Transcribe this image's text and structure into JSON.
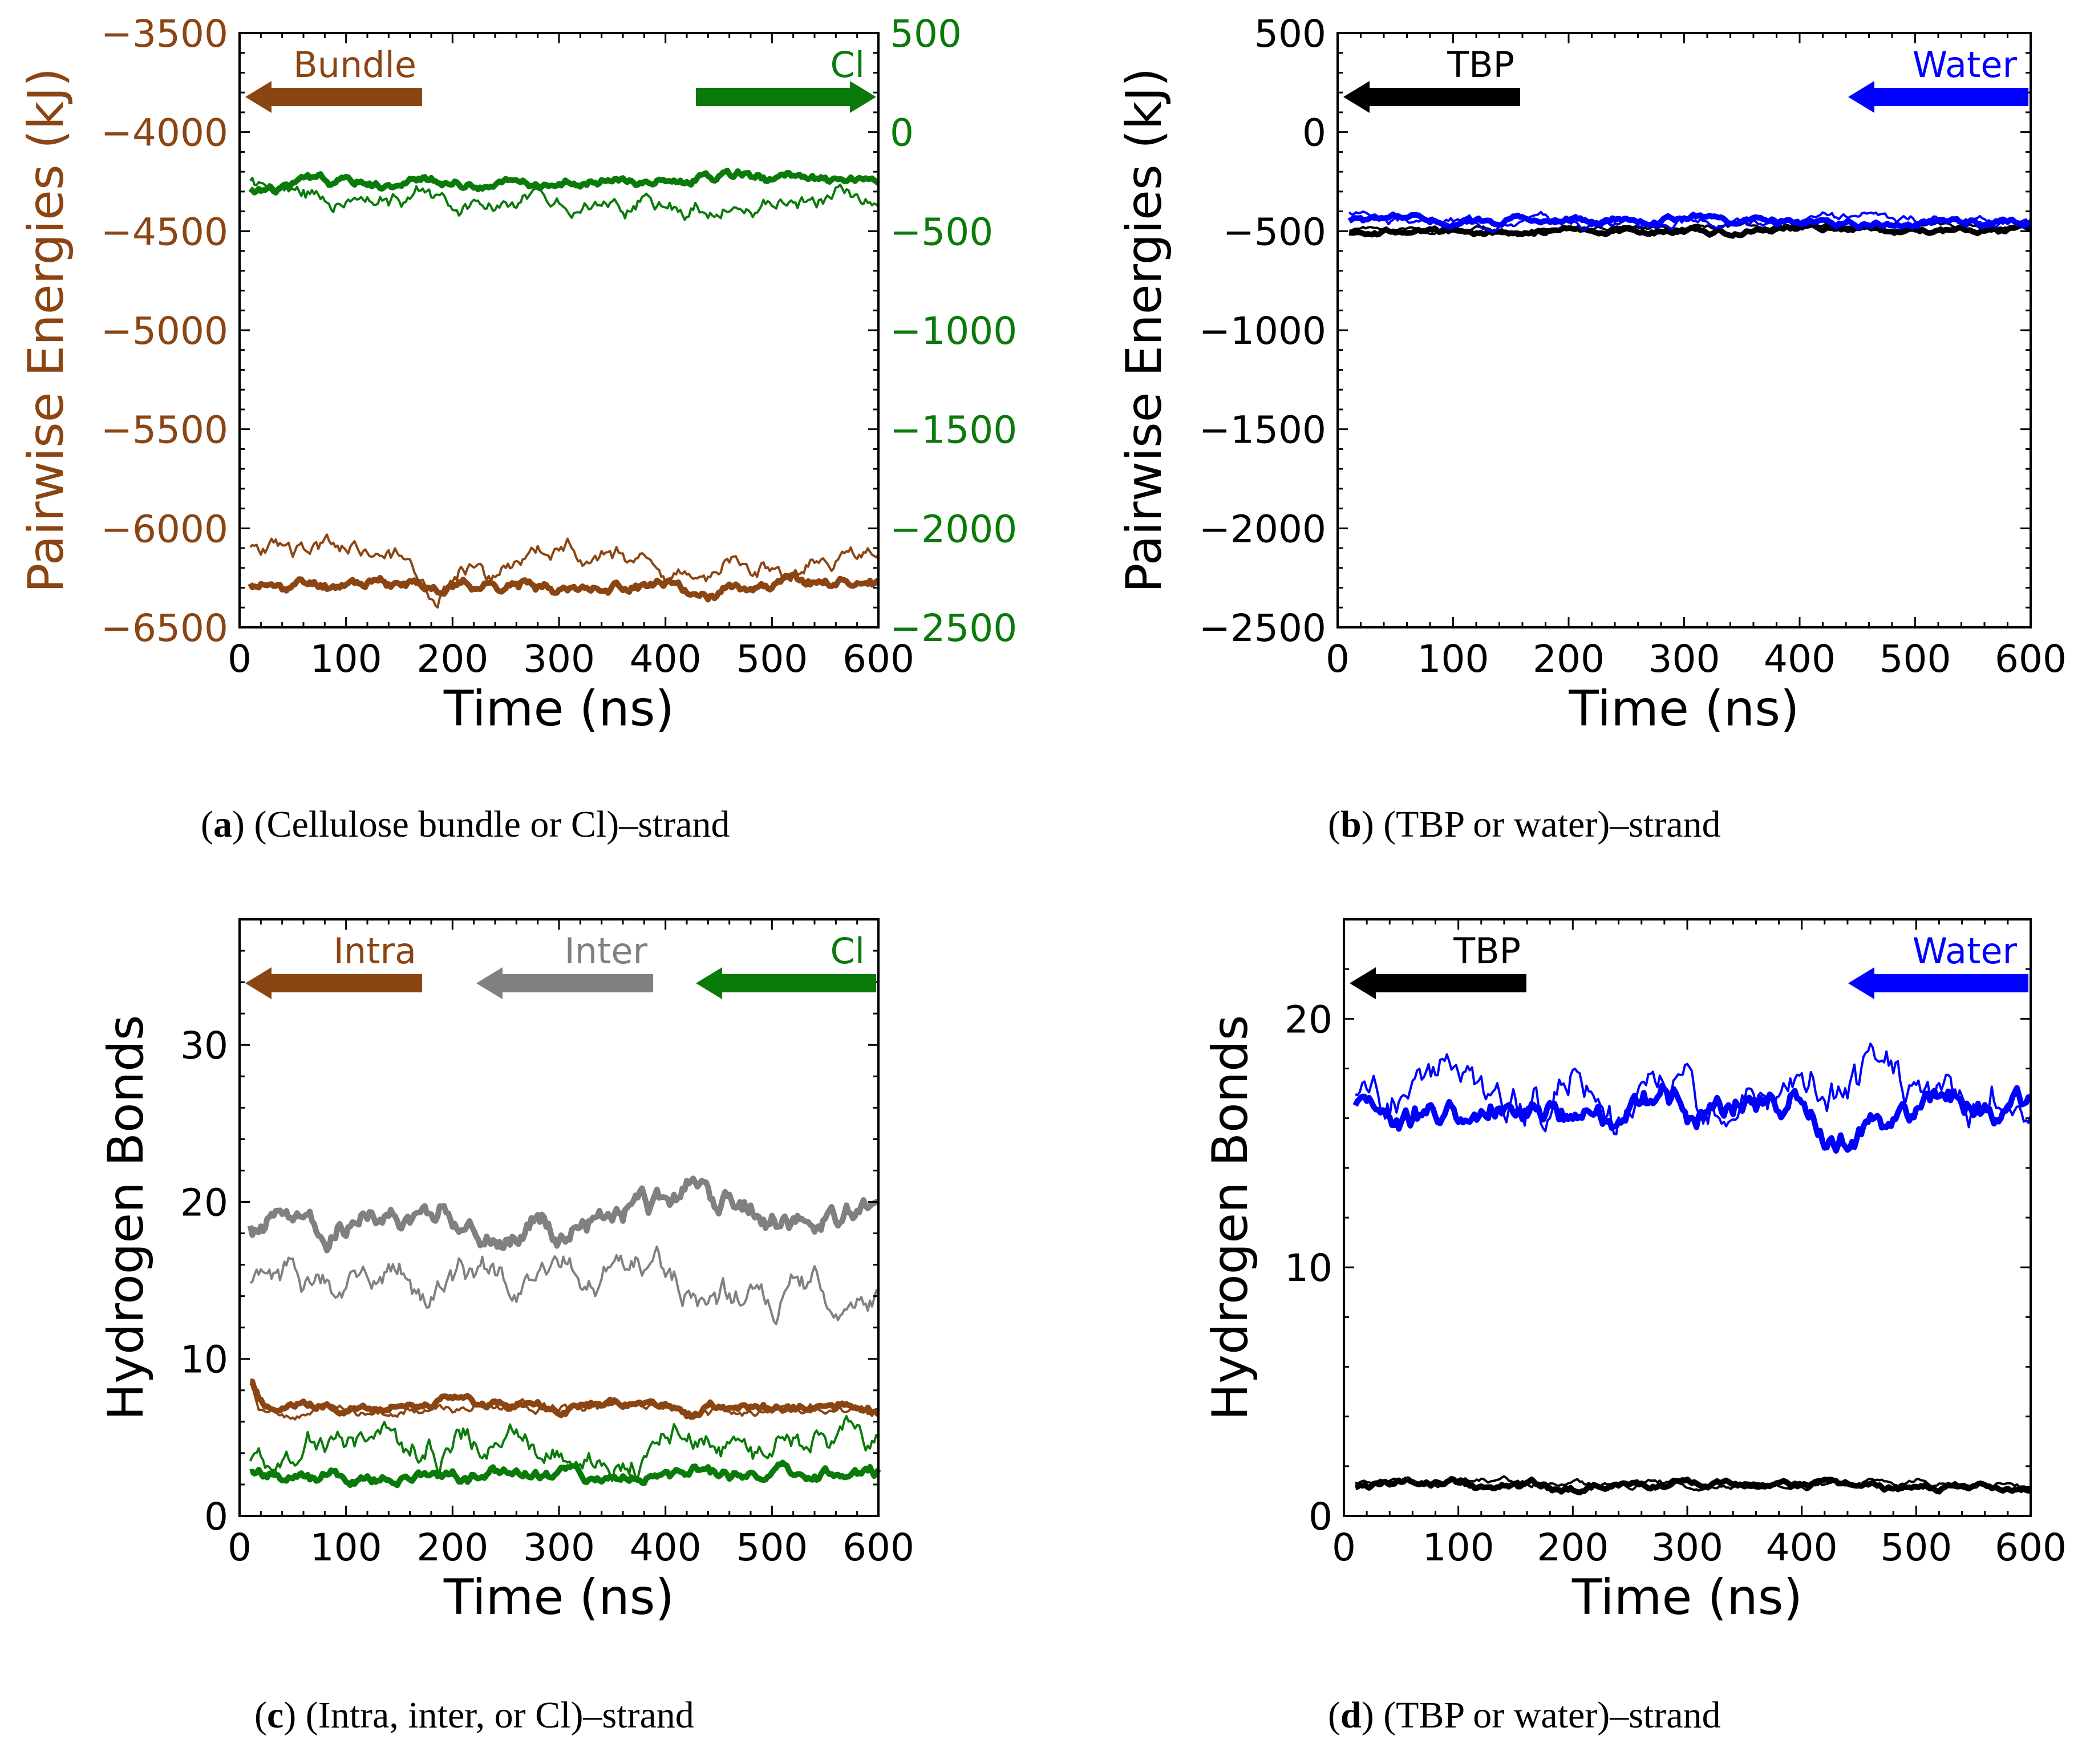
{
  "colors": {
    "bundle": "#8B4513",
    "cl": "#0A7A0A",
    "inter": "#808080",
    "tbp": "#000000",
    "water": "#0000FF"
  },
  "captions": {
    "a": {
      "letter": "a",
      "text": "(Cellulose bundle or Cl)–strand"
    },
    "b": {
      "letter": "b",
      "text": "(TBP or water)–strand"
    },
    "c": {
      "letter": "c",
      "text": "(Intra, inter, or Cl)–strand"
    },
    "d": {
      "letter": "d",
      "text": "(TBP or water)–strand"
    }
  },
  "chart_data": [
    {
      "id": "a",
      "type": "line",
      "xlabel": "Time (ns)",
      "ylabel": "Pairwise Energies (kJ)",
      "xlim": [
        0,
        600
      ],
      "xticks": [
        0,
        100,
        200,
        300,
        400,
        500,
        600
      ],
      "left_axis": {
        "ylim": [
          -6500,
          -3500
        ],
        "ticks": [
          -6500,
          -6000,
          -5500,
          -5000,
          -4500,
          -4000,
          -3500
        ],
        "tick_labels": [
          "−6500",
          "−6000",
          "−5500",
          "−5000",
          "−4500",
          "−4000",
          "−3500"
        ],
        "color_key": "bundle"
      },
      "right_axis": {
        "ylim": [
          -2500,
          500
        ],
        "ticks": [
          -2500,
          -2000,
          -1500,
          -1000,
          -500,
          0,
          500
        ],
        "tick_labels": [
          "−2500",
          "−2000",
          "−1500",
          "−1000",
          "−500",
          "0",
          "500"
        ],
        "color_key": "cl"
      },
      "legend": [
        {
          "label": "Bundle",
          "color_key": "bundle",
          "direction": "left",
          "position": "top-left"
        },
        {
          "label": "Cl",
          "color_key": "cl",
          "direction": "right",
          "position": "top-right"
        }
      ],
      "series": [
        {
          "name": "Bundle (thick)",
          "axis": "left",
          "color_key": "bundle",
          "width": "thick",
          "base": -6290,
          "amp": 25,
          "seed": 11,
          "bumps": [
            [
              430,
              -70,
              30
            ]
          ]
        },
        {
          "name": "Bundle (thin)",
          "axis": "left",
          "color_key": "bundle",
          "width": "thin",
          "base": -6130,
          "amp": 45,
          "seed": 23,
          "bumps": [
            [
              180,
              -140,
              20
            ],
            [
              245,
              -90,
              20
            ],
            [
              420,
              -130,
              30
            ],
            [
              510,
              -70,
              15
            ]
          ]
        },
        {
          "name": "Cl (thick)",
          "axis": "right",
          "color_key": "cl",
          "width": "thick",
          "base": -250,
          "amp": 20,
          "seed": 31,
          "bumps": [
            [
              20,
              -40,
              30
            ]
          ]
        },
        {
          "name": "Cl (thin)",
          "axis": "right",
          "color_key": "cl",
          "width": "thin",
          "base": -330,
          "amp": 40,
          "seed": 47,
          "bumps": [
            [
              20,
              60,
              20
            ],
            [
              240,
              -60,
              30
            ]
          ]
        }
      ]
    },
    {
      "id": "b",
      "type": "line",
      "xlabel": "Time (ns)",
      "ylabel": "Pairwise Energies (kJ)",
      "xlim": [
        0,
        600
      ],
      "xticks": [
        0,
        100,
        200,
        300,
        400,
        500,
        600
      ],
      "left_axis": {
        "ylim": [
          -2500,
          500
        ],
        "ticks": [
          -2500,
          -2000,
          -1500,
          -1000,
          -500,
          0,
          500
        ],
        "tick_labels": [
          "−2500",
          "−2000",
          "−1500",
          "−1000",
          "−500",
          "0",
          "500"
        ],
        "color_key": "tbp"
      },
      "legend": [
        {
          "label": "TBP",
          "color_key": "tbp",
          "direction": "left",
          "position": "top-left"
        },
        {
          "label": "Water",
          "color_key": "water",
          "direction": "left",
          "position": "top-right"
        }
      ],
      "series": [
        {
          "name": "TBP (thick)",
          "axis": "left",
          "color_key": "tbp",
          "width": "thick",
          "base": -500,
          "amp": 12,
          "seed": 53,
          "bumps": []
        },
        {
          "name": "TBP (thin)",
          "axis": "left",
          "color_key": "tbp",
          "width": "thin",
          "base": -490,
          "amp": 12,
          "seed": 59,
          "bumps": []
        },
        {
          "name": "Water (thick)",
          "axis": "left",
          "color_key": "water",
          "width": "thick",
          "base": -450,
          "amp": 15,
          "seed": 61,
          "bumps": []
        },
        {
          "name": "Water (thin)",
          "axis": "left",
          "color_key": "water",
          "width": "thin",
          "base": -445,
          "amp": 20,
          "seed": 67,
          "bumps": [
            [
              20,
              40,
              20
            ]
          ]
        }
      ]
    },
    {
      "id": "c",
      "type": "line",
      "xlabel": "Time (ns)",
      "ylabel": "Hydrogen Bonds",
      "xlim": [
        0,
        600
      ],
      "xticks": [
        0,
        100,
        200,
        300,
        400,
        500,
        600
      ],
      "left_axis": {
        "ylim": [
          0,
          38
        ],
        "ticks": [
          0,
          10,
          20,
          30
        ],
        "tick_labels": [
          "0",
          "10",
          "20",
          "30"
        ],
        "color_key": "tbp"
      },
      "legend": [
        {
          "label": "Intra",
          "color_key": "bundle",
          "direction": "left",
          "position": "top-left"
        },
        {
          "label": "Inter",
          "color_key": "inter",
          "direction": "left",
          "position": "top-center"
        },
        {
          "label": "Cl",
          "color_key": "cl",
          "direction": "left",
          "position": "top-right"
        }
      ],
      "series": [
        {
          "name": "Inter (thick)",
          "axis": "left",
          "color_key": "inter",
          "width": "thick",
          "base": 19.1,
          "amp": 0.7,
          "seed": 71,
          "bumps": [
            [
              425,
              2.0,
              15
            ],
            [
              80,
              -1.2,
              10
            ],
            [
              300,
              -1.3,
              12
            ],
            [
              495,
              -1.1,
              10
            ]
          ]
        },
        {
          "name": "Inter (thin)",
          "axis": "left",
          "color_key": "inter",
          "width": "thin",
          "base": 14.5,
          "amp": 0.9,
          "seed": 73,
          "bumps": [
            [
              180,
              -2.0,
              12
            ],
            [
              430,
              -1.2,
              15
            ]
          ]
        },
        {
          "name": "Intra (thick)",
          "axis": "left",
          "color_key": "bundle",
          "width": "thick",
          "base": 7.0,
          "amp": 0.25,
          "seed": 79,
          "bumps": [
            [
              10,
              1.5,
              8
            ],
            [
              420,
              -0.8,
              15
            ]
          ]
        },
        {
          "name": "Intra (thin)",
          "axis": "left",
          "color_key": "bundle",
          "width": "thin",
          "base": 6.8,
          "amp": 0.3,
          "seed": 83,
          "bumps": [
            [
              10,
              1.8,
              6
            ],
            [
              420,
              -0.5,
              15
            ]
          ]
        },
        {
          "name": "Cl (thin)",
          "axis": "left",
          "color_key": "cl",
          "width": "thin",
          "base": 4.0,
          "amp": 0.8,
          "seed": 89,
          "bumps": [
            [
              420,
              2.0,
              10
            ],
            [
              570,
              1.0,
              12
            ]
          ]
        },
        {
          "name": "Cl (thick)",
          "axis": "left",
          "color_key": "cl",
          "width": "thick",
          "base": 2.6,
          "amp": 0.35,
          "seed": 97,
          "bumps": []
        }
      ]
    },
    {
      "id": "d",
      "type": "line",
      "xlabel": "Time (ns)",
      "ylabel": "Hydrogen Bonds",
      "xlim": [
        0,
        600
      ],
      "xticks": [
        0,
        100,
        200,
        300,
        400,
        500,
        600
      ],
      "left_axis": {
        "ylim": [
          0,
          24
        ],
        "ticks": [
          0,
          10,
          20
        ],
        "tick_labels": [
          "0",
          "10",
          "20"
        ],
        "color_key": "tbp"
      },
      "legend": [
        {
          "label": "TBP",
          "color_key": "tbp",
          "direction": "left",
          "position": "top-left"
        },
        {
          "label": "Water",
          "color_key": "water",
          "direction": "left",
          "position": "top-right"
        }
      ],
      "series": [
        {
          "name": "Water (thin)",
          "axis": "left",
          "color_key": "water",
          "width": "thin",
          "base": 17.2,
          "amp": 0.8,
          "seed": 101,
          "bumps": [
            [
              200,
              1.5,
              10
            ],
            [
              90,
              1.0,
              20
            ]
          ]
        },
        {
          "name": "Water (thick)",
          "axis": "left",
          "color_key": "water",
          "width": "thick",
          "base": 16.3,
          "amp": 0.5,
          "seed": 103,
          "bumps": [
            [
              430,
              -1.2,
              15
            ],
            [
              55,
              -0.8,
              15
            ]
          ]
        },
        {
          "name": "TBP (thick)",
          "axis": "left",
          "color_key": "tbp",
          "width": "thick",
          "base": 1.2,
          "amp": 0.12,
          "seed": 107,
          "bumps": []
        },
        {
          "name": "TBP (thin)",
          "axis": "left",
          "color_key": "tbp",
          "width": "thin",
          "base": 1.3,
          "amp": 0.12,
          "seed": 109,
          "bumps": []
        }
      ]
    }
  ]
}
